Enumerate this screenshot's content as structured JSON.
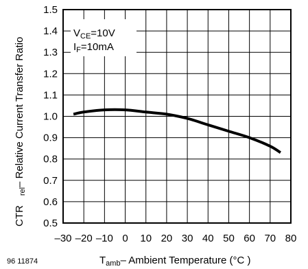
{
  "figure_id": "96 11874",
  "chart_data": {
    "type": "line",
    "ylabel_main": "CTR",
    "ylabel_sub": "rel",
    "ylabel_rest": "– Relative Current Transfer Ratio",
    "xlabel_main": "T",
    "xlabel_sub": "amb",
    "xlabel_rest": "– Ambient Temperature (°C )",
    "annotation_vce_main": "V",
    "annotation_vce_sub": "CE",
    "annotation_vce_val": "=10V",
    "annotation_if_main": "I",
    "annotation_if_sub": "F",
    "annotation_if_val": "=10mA",
    "xlim": [
      -30,
      80
    ],
    "ylim": [
      0.5,
      1.5
    ],
    "x_ticks": [
      -30,
      -20,
      -10,
      0,
      10,
      20,
      30,
      40,
      50,
      60,
      70,
      80
    ],
    "x_tick_labels": [
      "–30",
      "–20",
      "–10",
      "0",
      "10",
      "20",
      "30",
      "40",
      "50",
      "60",
      "70",
      "80"
    ],
    "y_ticks": [
      0.5,
      0.6,
      0.7,
      0.8,
      0.9,
      1.0,
      1.1,
      1.2,
      1.3,
      1.4,
      1.5
    ],
    "y_tick_labels": [
      "0.5",
      "0.6",
      "0.7",
      "0.8",
      "0.9",
      "1.0",
      "1.1",
      "1.2",
      "1.3",
      "1.4",
      "1.5"
    ],
    "grid": true,
    "series": [
      {
        "x": [
          -25,
          -20,
          -10,
          0,
          10,
          20,
          30,
          40,
          50,
          60,
          70,
          75
        ],
        "y": [
          1.01,
          1.02,
          1.03,
          1.03,
          1.02,
          1.01,
          0.99,
          0.96,
          0.93,
          0.9,
          0.86,
          0.83
        ]
      }
    ],
    "line_color": "#000000"
  }
}
